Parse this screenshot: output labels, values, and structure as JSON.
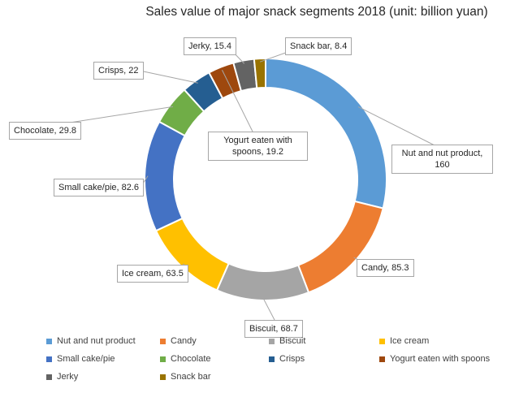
{
  "chart_data": {
    "type": "pie",
    "donut": true,
    "title": "Sales value of major snack segments 2018 (unit: billion yuan)",
    "unit": "billion yuan",
    "legend_position": "bottom",
    "slices": [
      {
        "label": "Nut and nut product",
        "value": 160,
        "data_label": "Nut and nut product, 160",
        "color": "#5b9bd5"
      },
      {
        "label": "Candy",
        "value": 85.3,
        "data_label": "Candy, 85.3",
        "color": "#ed7d31"
      },
      {
        "label": "Biscuit",
        "value": 68.7,
        "data_label": "Biscuit, 68.7",
        "color": "#a5a5a5"
      },
      {
        "label": "Ice cream",
        "value": 63.5,
        "data_label": "Ice cream, 63.5",
        "color": "#ffc000"
      },
      {
        "label": "Small cake/pie",
        "value": 82.6,
        "data_label": "Small cake/pie, 82.6",
        "color": "#4472c4"
      },
      {
        "label": "Chocolate",
        "value": 29.8,
        "data_label": "Chocolate, 29.8",
        "color": "#70ad47"
      },
      {
        "label": "Crisps",
        "value": 22,
        "data_label": "Crisps, 22",
        "color": "#255e91"
      },
      {
        "label": "Yogurt eaten with spoons",
        "value": 19.2,
        "data_label": "Yogurt eaten with spoons, 19.2",
        "color": "#9e480e"
      },
      {
        "label": "Jerky",
        "value": 15.4,
        "data_label": "Jerky, 15.4",
        "color": "#636363"
      },
      {
        "label": "Snack bar",
        "value": 8.4,
        "data_label": "Snack bar, 8.4",
        "color": "#997300"
      }
    ]
  }
}
